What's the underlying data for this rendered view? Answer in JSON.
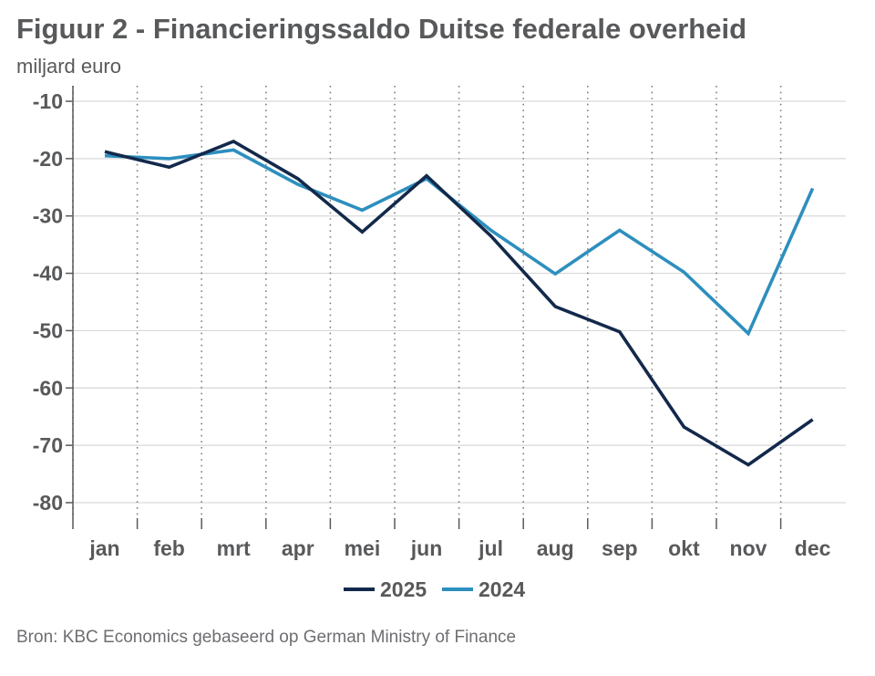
{
  "chart_data": {
    "type": "line",
    "title": "Figuur 2 - Financieringssaldo Duitse federale overheid",
    "subtitle": "miljard euro",
    "ylabel": "miljard euro",
    "xlabel": "",
    "categories": [
      "jan",
      "feb",
      "mrt",
      "apr",
      "mei",
      "jun",
      "jul",
      "aug",
      "sep",
      "okt",
      "nov",
      "dec"
    ],
    "yticks": [
      -10,
      -20,
      -30,
      -40,
      -50,
      -60,
      -70,
      -80
    ],
    "ylim": [
      -83,
      -7
    ],
    "grid": true,
    "legend_position": "bottom-center",
    "series": [
      {
        "name": "2025",
        "color": "#13294b",
        "values": [
          -18.8,
          -21.5,
          -17.0,
          -23.5,
          -32.8,
          -23.0,
          -33.5,
          -45.8,
          -50.2,
          -66.8,
          -73.4,
          -65.5
        ]
      },
      {
        "name": "2024",
        "color": "#2d8fbe",
        "values": [
          -19.5,
          -20.0,
          -18.5,
          -24.5,
          -29.0,
          -23.5,
          -32.5,
          -40.1,
          -32.5,
          -39.8,
          -50.5,
          -25.2
        ]
      }
    ],
    "source": "Bron: KBC Economics gebaseerd op German Ministry of Finance"
  }
}
